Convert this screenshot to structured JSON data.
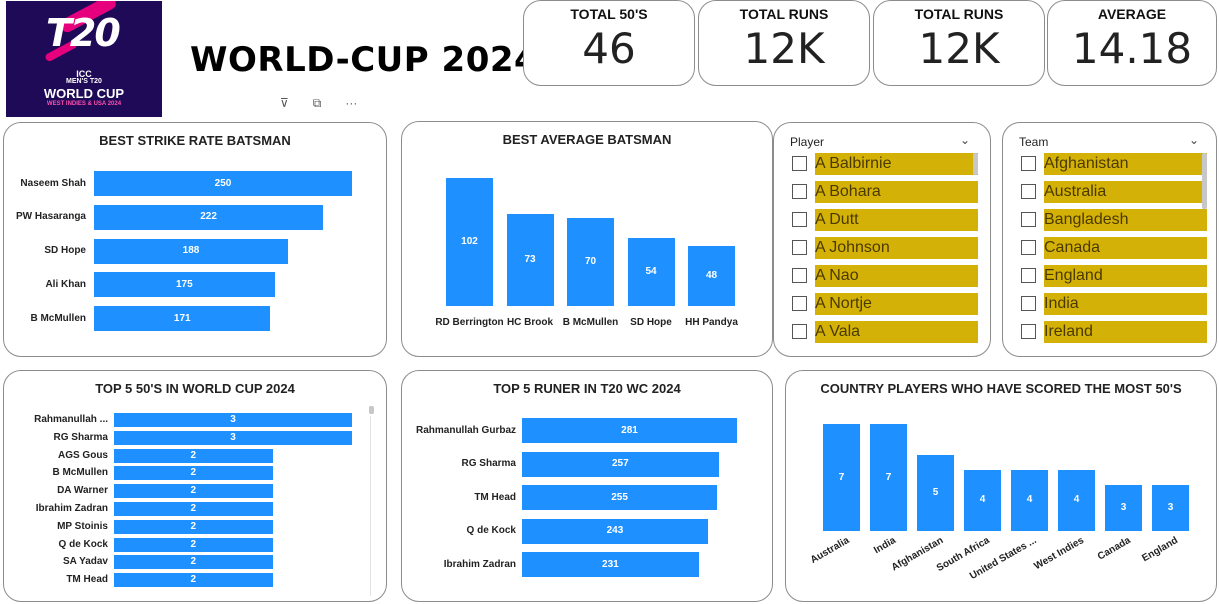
{
  "logo": {
    "brand": "T20",
    "line1": "ICC",
    "line2": "MEN'S T20",
    "line3": "WORLD CUP",
    "line4": "WEST INDIES & USA 2024"
  },
  "page_title": "WORLD-CUP 2024",
  "kpis": [
    {
      "label": "TOTAL 50'S",
      "value": "46"
    },
    {
      "label": "TOTAL RUNS",
      "value": "12K"
    },
    {
      "label": "TOTAL RUNS",
      "value": "12K"
    },
    {
      "label": "AVERAGE",
      "value": "14.18"
    }
  ],
  "player_slicer": {
    "header": "Player",
    "items": [
      "A Balbirnie",
      "A Bohara",
      "A Dutt",
      "A Johnson",
      "A Nao",
      "A Nortje",
      "A Vala"
    ]
  },
  "team_slicer": {
    "header": "Team",
    "items": [
      "Afghanistan",
      "Australia",
      "Bangladesh",
      "Canada",
      "England",
      "India",
      "Ireland"
    ]
  },
  "chart_data": [
    {
      "id": "strike",
      "type": "bar",
      "orientation": "horizontal",
      "title": "BEST STRIKE RATE BATSMAN",
      "categories": [
        "Naseem Shah",
        "PW Hasaranga",
        "SD Hope",
        "Ali Khan",
        "B McMullen"
      ],
      "values": [
        250,
        222,
        188,
        175,
        171
      ],
      "color": "#1e90ff"
    },
    {
      "id": "average",
      "type": "bar",
      "orientation": "vertical",
      "title": "BEST AVERAGE BATSMAN",
      "categories": [
        "RD Berrington",
        "HC Brook",
        "B McMullen",
        "SD Hope",
        "HH Pandya"
      ],
      "values": [
        102,
        73,
        70,
        54,
        48
      ],
      "color": "#1e90ff"
    },
    {
      "id": "fifties",
      "type": "bar",
      "orientation": "horizontal",
      "title": "TOP 5 50'S IN WORLD CUP 2024",
      "categories": [
        "Rahmanullah ...",
        "RG Sharma",
        "AGS Gous",
        "B McMullen",
        "DA Warner",
        "Ibrahim Zadran",
        "MP Stoinis",
        "Q de Kock",
        "SA Yadav",
        "TM Head"
      ],
      "values": [
        3,
        3,
        2,
        2,
        2,
        2,
        2,
        2,
        2,
        2
      ],
      "color": "#1e90ff"
    },
    {
      "id": "runs",
      "type": "bar",
      "orientation": "horizontal",
      "title": "TOP 5 RUNER IN T20 WC 2024",
      "categories": [
        "Rahmanullah Gurbaz",
        "RG Sharma",
        "TM Head",
        "Q de Kock",
        "Ibrahim Zadran"
      ],
      "values": [
        281,
        257,
        255,
        243,
        231
      ],
      "color": "#1e90ff"
    },
    {
      "id": "country",
      "type": "bar",
      "orientation": "vertical",
      "title": "COUNTRY PLAYERS WHO HAVE SCORED THE MOST 50'S",
      "categories": [
        "Australia",
        "India",
        "Afghanistan",
        "South Africa",
        "United States ...",
        "West Indies",
        "Canada",
        "England"
      ],
      "values": [
        7,
        7,
        5,
        4,
        4,
        4,
        3,
        3
      ],
      "color": "#1e90ff"
    }
  ]
}
